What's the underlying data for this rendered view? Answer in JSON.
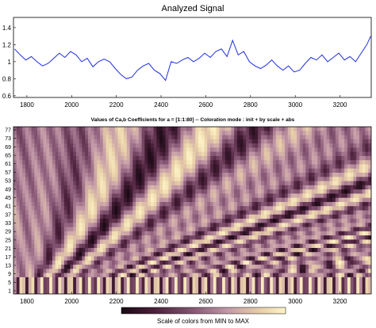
{
  "chart_data": [
    {
      "type": "line",
      "title": "Analyzed Signal",
      "xlabel": "",
      "ylabel": "",
      "xlim": [
        1740,
        3340
      ],
      "ylim": [
        0.58,
        1.52
      ],
      "x_ticks": [
        1800,
        2000,
        2200,
        2400,
        2600,
        2800,
        3000,
        3200
      ],
      "y_ticks": [
        0.6,
        0.8,
        1,
        1.2,
        1.4
      ],
      "color": "#1f2fe0",
      "grid": false,
      "series": [
        {
          "x": [
            1745,
            1770,
            1795,
            1820,
            1845,
            1870,
            1895,
            1920,
            1945,
            1970,
            1995,
            2020,
            2045,
            2070,
            2095,
            2120,
            2145,
            2170,
            2195,
            2220,
            2245,
            2270,
            2295,
            2320,
            2345,
            2370,
            2395,
            2420,
            2445,
            2470,
            2495,
            2520,
            2545,
            2570,
            2595,
            2620,
            2645,
            2670,
            2695,
            2720,
            2745,
            2770,
            2795,
            2820,
            2845,
            2870,
            2895,
            2920,
            2945,
            2970,
            2995,
            3020,
            3045,
            3070,
            3095,
            3120,
            3145,
            3170,
            3195,
            3220,
            3245,
            3270,
            3295,
            3320,
            3338
          ],
          "values": [
            1.15,
            1.08,
            1.02,
            1.06,
            1.0,
            0.95,
            0.98,
            1.04,
            1.1,
            1.05,
            1.12,
            1.08,
            1.0,
            1.04,
            0.94,
            1.0,
            1.03,
            1.0,
            0.92,
            0.85,
            0.8,
            0.82,
            0.9,
            0.95,
            0.98,
            0.9,
            0.86,
            0.78,
            1.0,
            0.98,
            1.02,
            1.05,
            1.0,
            1.04,
            1.1,
            1.05,
            1.12,
            1.15,
            1.06,
            1.25,
            1.08,
            1.12,
            1.0,
            0.95,
            0.92,
            0.96,
            1.02,
            0.95,
            0.9,
            0.95,
            0.88,
            0.9,
            0.98,
            1.05,
            1.02,
            1.08,
            1.0,
            1.05,
            1.1,
            1.02,
            1.06,
            1.0,
            1.1,
            1.2,
            1.3
          ]
        }
      ]
    },
    {
      "type": "heatmap",
      "title": "Values of Ca,b Coefficients for a = [1:1:80] -- Coloration mode : init + by scale + abs",
      "xlabel": "",
      "ylabel": "",
      "xlim": [
        1740,
        3340
      ],
      "x_ticks": [
        1800,
        2000,
        2200,
        2400,
        2600,
        2800,
        3000,
        3200
      ],
      "y_ticks": [
        1,
        5,
        9,
        13,
        17,
        21,
        25,
        29,
        33,
        37,
        41,
        45,
        49,
        53,
        57,
        61,
        65,
        69,
        73,
        77
      ],
      "colorbar_label": "Scale of colors from MIN to MAX",
      "colormap": [
        "#1a0a14",
        "#4a1f3a",
        "#8a5a78",
        "#c49aa8",
        "#e8d0a8",
        "#fff4c8"
      ]
    }
  ]
}
